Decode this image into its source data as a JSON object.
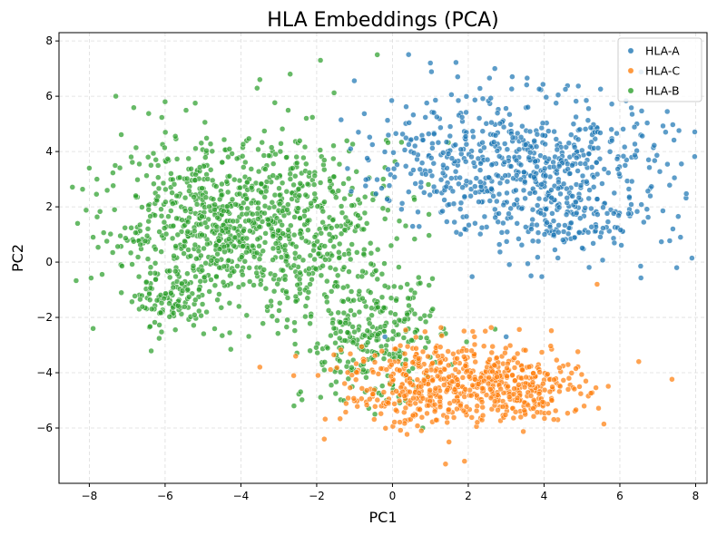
{
  "chart_data": {
    "type": "scatter",
    "title": "HLA Embeddings (PCA)",
    "xlabel": "PC1",
    "ylabel": "PC2",
    "xlim": [
      -8.8,
      8.3
    ],
    "ylim": [
      -8.0,
      8.3
    ],
    "xticks": [
      -8,
      -6,
      -4,
      -2,
      0,
      2,
      4,
      6,
      8
    ],
    "yticks": [
      -6,
      -4,
      -2,
      0,
      2,
      4,
      6,
      8
    ],
    "grid": true,
    "legend_position": "top-right",
    "series": [
      {
        "name": "HLA-A",
        "color": "#1f77b4",
        "clusters": [
          {
            "center": [
              4.2,
              3.2
            ],
            "spread": [
              1.6,
              1.35
            ],
            "count": 520
          },
          {
            "center": [
              1.3,
              3.8
            ],
            "spread": [
              1.1,
              1.2
            ],
            "count": 180
          },
          {
            "center": [
              4.9,
              1.3
            ],
            "spread": [
              0.6,
              0.45
            ],
            "count": 60
          }
        ],
        "points": [
          [
            7.6,
            0.9
          ],
          [
            7.5,
            -0.2
          ],
          [
            7.4,
            1.2
          ],
          [
            -0.9,
            4.7
          ],
          [
            1.0,
            7.2
          ],
          [
            2.7,
            7.0
          ],
          [
            -0.2,
            -2.7
          ],
          [
            3.0,
            -2.7
          ]
        ]
      },
      {
        "name": "HLA-C",
        "color": "#ff7f0e",
        "clusters": [
          {
            "center": [
              2.0,
              -4.3
            ],
            "spread": [
              1.5,
              0.75
            ],
            "count": 420
          },
          {
            "center": [
              3.4,
              -4.7
            ],
            "spread": [
              0.75,
              0.5
            ],
            "count": 130
          },
          {
            "center": [
              0.0,
              -4.6
            ],
            "spread": [
              1.0,
              0.8
            ],
            "count": 110
          }
        ],
        "points": [
          [
            1.4,
            -7.3
          ],
          [
            1.9,
            -7.2
          ],
          [
            -1.8,
            -6.4
          ],
          [
            -3.5,
            -3.8
          ],
          [
            5.4,
            -0.8
          ],
          [
            6.5,
            -3.6
          ]
        ]
      },
      {
        "name": "HLA-B",
        "color": "#2ca02c",
        "clusters": [
          {
            "center": [
              -4.6,
              1.3
            ],
            "spread": [
              1.5,
              1.5
            ],
            "count": 720
          },
          {
            "center": [
              -2.0,
              1.2
            ],
            "spread": [
              1.4,
              1.8
            ],
            "count": 320
          },
          {
            "center": [
              -5.8,
              -1.5
            ],
            "spread": [
              0.45,
              0.45
            ],
            "count": 80
          },
          {
            "center": [
              -0.5,
              -2.8
            ],
            "spread": [
              0.9,
              1.1
            ],
            "count": 260
          }
        ],
        "points": [
          [
            -8.0,
            3.4
          ],
          [
            -7.9,
            0.9
          ],
          [
            -7.9,
            -2.4
          ],
          [
            -7.8,
            3.0
          ],
          [
            -7.3,
            6.0
          ],
          [
            -1.9,
            7.3
          ],
          [
            -0.4,
            7.5
          ],
          [
            -2.7,
            6.8
          ],
          [
            -3.5,
            6.6
          ],
          [
            -6.0,
            5.8
          ],
          [
            -1.8,
            -3.9
          ],
          [
            0.8,
            -6.0
          ],
          [
            -2.6,
            -5.2
          ]
        ]
      }
    ]
  }
}
